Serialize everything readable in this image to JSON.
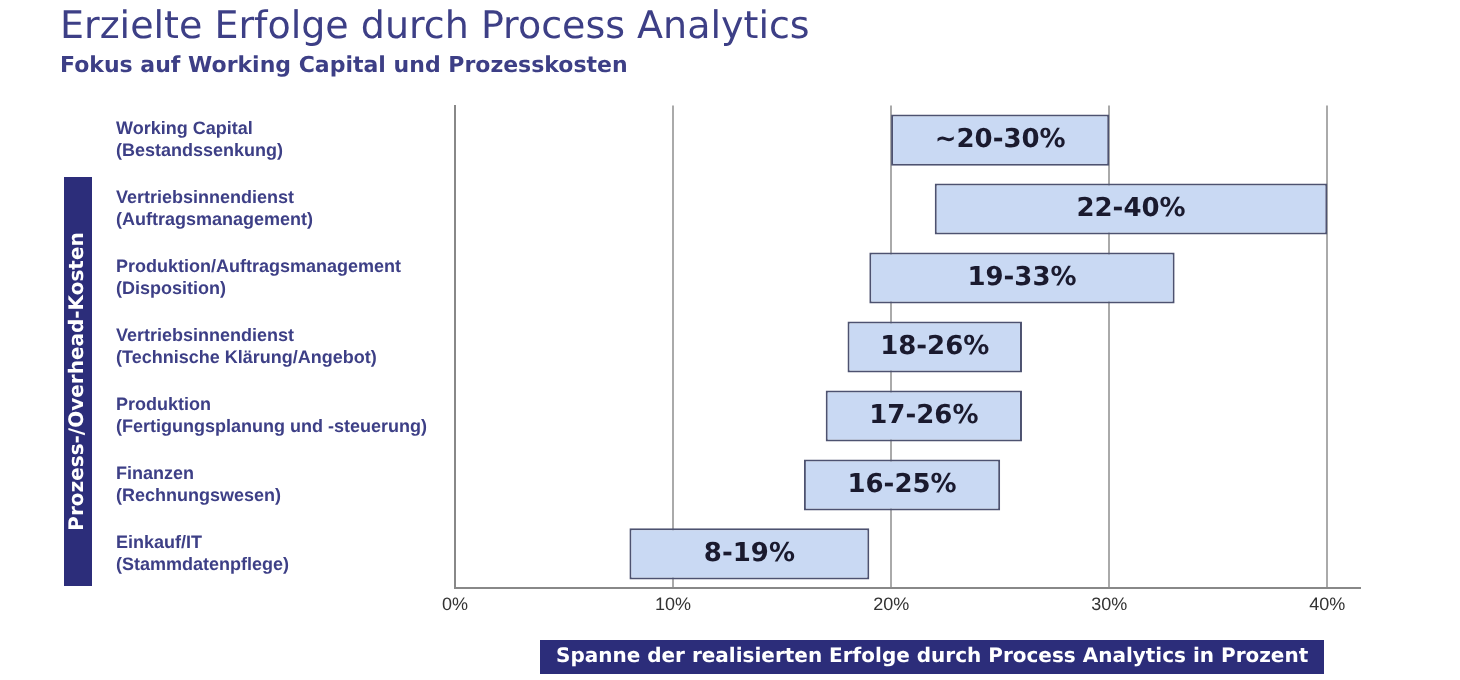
{
  "chart_data": {
    "type": "bar",
    "orientation": "horizontal",
    "title": "Erzielte Erfolge durch Process Analytics",
    "subtitle": "Fokus auf Working Capital und Prozesskosten",
    "xlabel": "Spanne der realisierten Erfolge durch Process Analytics in Prozent",
    "categories": [
      "Working Capital\n(Bestandssenkung)",
      "Vertriebsinnendienst\n(Auftragsmanagement)",
      "Produktion/Auftragsmanagement\n(Disposition)",
      "Vertriebsinnendienst\n(Technische Klärung/Angebot)",
      "Produktion\n(Fertigungsplanung und -steuerung)",
      "Finanzen\n(Rechnungswesen)",
      "Einkauf/IT\n(Stammdatenpflege)"
    ],
    "base": [
      20,
      22,
      19,
      18,
      17,
      16,
      8
    ],
    "values": [
      10,
      18,
      14,
      8,
      9,
      9,
      11
    ],
    "color": "#c9d9f3",
    "xlim": [
      0,
      41.5
    ],
    "xticks": [
      {
        "value": 0,
        "label": "0%"
      },
      {
        "value": 10,
        "label": "10%"
      },
      {
        "value": 20,
        "label": "20%"
      },
      {
        "value": 30,
        "label": "30%"
      },
      {
        "value": 40,
        "label": "40%"
      }
    ],
    "grid": "x",
    "legend": false,
    "annotations": [
      "Prozess-/Overhead-Kosten",
      {
        "text": "~20-30%",
        "x": 25,
        "y": "Working Capital\n(Bestandssenkung)"
      },
      {
        "text": "22-40%",
        "x": 31,
        "y": "Vertriebsinnendienst\n(Auftragsmanagement)"
      },
      {
        "text": "19-33%",
        "x": 26,
        "y": "Produktion/Auftragsmanagement\n(Disposition)"
      },
      {
        "text": "18-26%",
        "x": 22,
        "y": "Vertriebsinnendienst\n(Technische Klärung/Angebot)"
      },
      {
        "text": "17-26%",
        "x": 21.5,
        "y": "Produktion\n(Fertigungsplanung und -steuerung)"
      },
      {
        "text": "16-25%",
        "x": 20.5,
        "y": "Finanzen\n(Rechnungswesen)"
      },
      {
        "text": "8-19%",
        "x": 13.5,
        "y": "Einkauf/IT\n(Stammdatenpflege)"
      }
    ]
  }
}
